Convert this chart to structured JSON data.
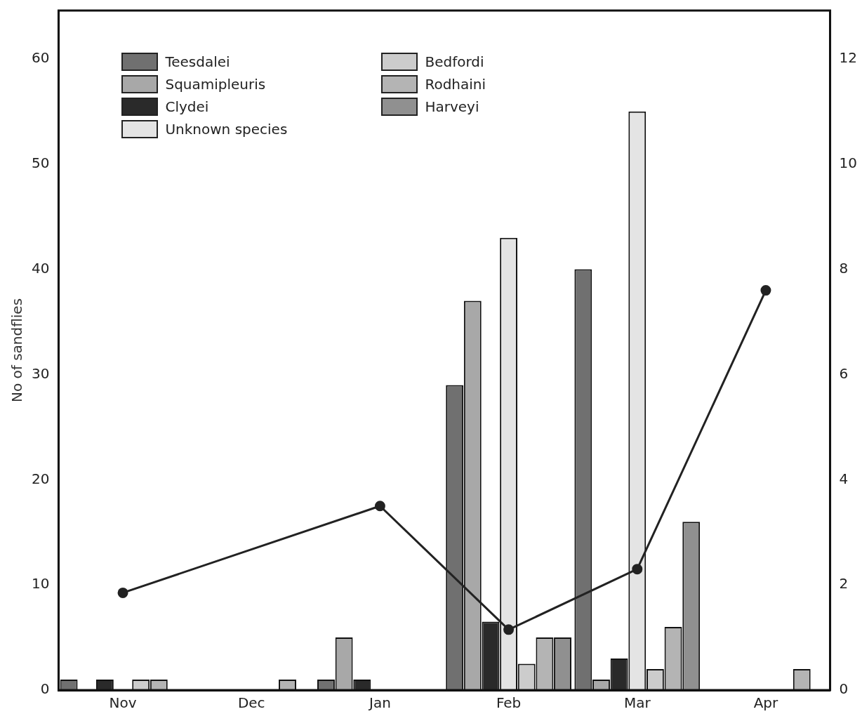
{
  "chart_data": {
    "type": "bar",
    "ylabel": "No of sandflies",
    "categories": [
      "Nov",
      "Dec",
      "Jan",
      "Feb",
      "Mar",
      "Apr"
    ],
    "series": [
      {
        "name": "Teesdalei",
        "color": "#707070",
        "values": [
          1,
          null,
          1,
          29,
          40,
          null
        ]
      },
      {
        "name": "Squamipleuris",
        "color": "#a8a8a8",
        "values": [
          null,
          null,
          5,
          37,
          1,
          null
        ]
      },
      {
        "name": "Clydei",
        "color": "#2a2a2a",
        "values": [
          1,
          null,
          1,
          6.5,
          3,
          null
        ]
      },
      {
        "name": "Unknown species",
        "color": "#e4e4e4",
        "values": [
          null,
          null,
          null,
          43,
          55,
          null
        ]
      },
      {
        "name": "Bedfordi",
        "color": "#cccccc",
        "values": [
          1,
          null,
          null,
          2.5,
          2,
          null
        ]
      },
      {
        "name": "Rodhaini",
        "color": "#b4b4b4",
        "values": [
          1,
          1,
          null,
          5,
          6,
          2
        ]
      },
      {
        "name": "Harveyi",
        "color": "#909090",
        "values": [
          null,
          null,
          null,
          5,
          16,
          null
        ]
      },
      {
        "type": "line",
        "axis": "y2",
        "color": "#222222",
        "marker": "circle",
        "values": [
          1.85,
          null,
          3.5,
          1.15,
          2.3,
          7.6
        ]
      }
    ],
    "legend": "top left",
    "grid": false,
    "ylim": [
      0,
      64.6
    ],
    "yticks": [
      0,
      10,
      20,
      30,
      40,
      50,
      60
    ],
    "y2lim": [
      0,
      12.92
    ],
    "y2ticks": [
      0,
      2,
      4,
      6,
      8,
      10,
      12
    ]
  }
}
